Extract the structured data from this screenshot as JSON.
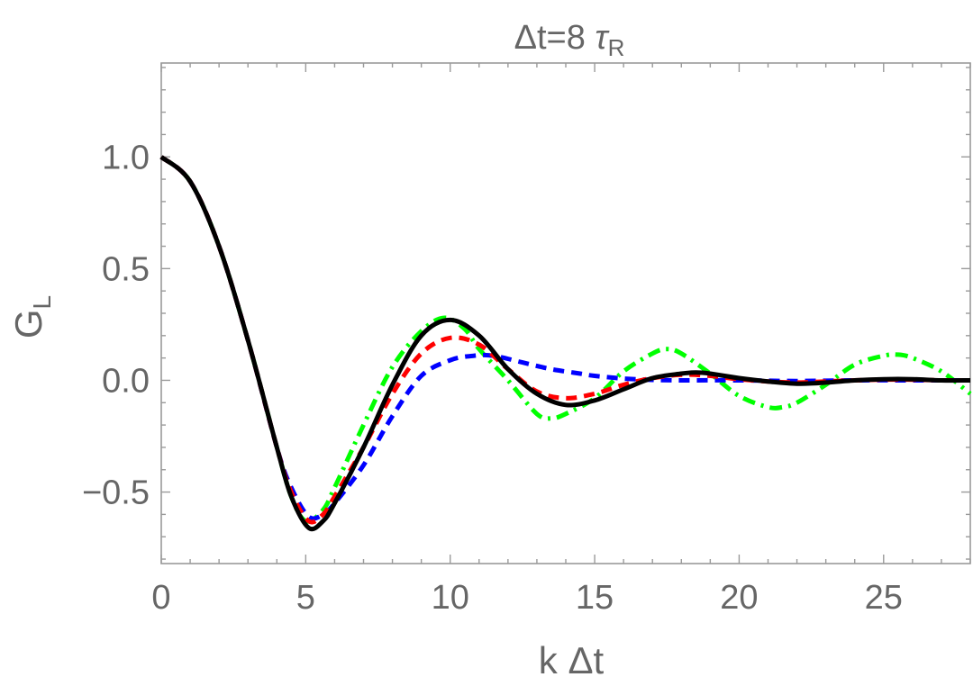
{
  "chart_data": {
    "type": "line",
    "title_main": "Δt=8 ",
    "title_sym": "τ",
    "title_sub": "R",
    "xlabel": "k Δt",
    "ylabel_main": "G",
    "ylabel_sub": "L",
    "xlim": [
      0,
      28
    ],
    "ylim": [
      -0.82,
      1.42
    ],
    "xticks": [
      0,
      5,
      10,
      15,
      20,
      25
    ],
    "xtick_labels": [
      "0",
      "5",
      "10",
      "15",
      "20",
      "25"
    ],
    "yticks": [
      -0.5,
      0.0,
      0.5,
      1.0
    ],
    "ytick_labels": [
      "−0.5",
      "0.0",
      "0.5",
      "1.0"
    ],
    "grid": false,
    "series": [
      {
        "color": "#000000",
        "style": "solid",
        "points": [
          [
            0,
            1.0
          ],
          [
            1,
            0.89
          ],
          [
            2,
            0.6
          ],
          [
            3,
            0.18
          ],
          [
            4,
            -0.3
          ],
          [
            4.5,
            -0.52
          ],
          [
            5.1,
            -0.66
          ],
          [
            5.6,
            -0.63
          ],
          [
            6,
            -0.55
          ],
          [
            7,
            -0.3
          ],
          [
            8,
            -0.02
          ],
          [
            9,
            0.2
          ],
          [
            10,
            0.27
          ],
          [
            11,
            0.2
          ],
          [
            12,
            0.05
          ],
          [
            13,
            -0.06
          ],
          [
            14,
            -0.11
          ],
          [
            15,
            -0.09
          ],
          [
            16,
            -0.04
          ],
          [
            17,
            0.01
          ],
          [
            18,
            0.03
          ],
          [
            18.5,
            0.035
          ],
          [
            19,
            0.03
          ],
          [
            20,
            0.01
          ],
          [
            21,
            -0.005
          ],
          [
            22,
            -0.015
          ],
          [
            23,
            -0.01
          ],
          [
            24,
            0.0
          ],
          [
            25,
            0.005
          ],
          [
            26,
            0.005
          ],
          [
            27,
            0.0
          ],
          [
            28,
            0.0
          ]
        ]
      },
      {
        "color": "#ff0000",
        "style": "dashed",
        "points": [
          [
            0,
            1.0
          ],
          [
            1,
            0.89
          ],
          [
            2,
            0.6
          ],
          [
            3,
            0.18
          ],
          [
            4,
            -0.3
          ],
          [
            4.5,
            -0.5
          ],
          [
            5.1,
            -0.63
          ],
          [
            5.6,
            -0.6
          ],
          [
            6,
            -0.52
          ],
          [
            7,
            -0.3
          ],
          [
            8,
            -0.06
          ],
          [
            9,
            0.12
          ],
          [
            10,
            0.19
          ],
          [
            11,
            0.16
          ],
          [
            12,
            0.05
          ],
          [
            13,
            -0.05
          ],
          [
            14,
            -0.08
          ],
          [
            15,
            -0.06
          ],
          [
            16,
            -0.02
          ],
          [
            17,
            0.01
          ],
          [
            18,
            0.025
          ],
          [
            19,
            0.02
          ],
          [
            20,
            0.005
          ],
          [
            21,
            -0.005
          ],
          [
            22,
            -0.01
          ],
          [
            23,
            -0.005
          ],
          [
            24,
            0.0
          ],
          [
            25,
            0.003
          ],
          [
            26,
            0.003
          ],
          [
            27,
            0.0
          ],
          [
            28,
            0.0
          ]
        ]
      },
      {
        "color": "#0000ff",
        "style": "dashed",
        "points": [
          [
            0,
            1.0
          ],
          [
            1,
            0.89
          ],
          [
            2,
            0.6
          ],
          [
            3,
            0.18
          ],
          [
            4,
            -0.3
          ],
          [
            4.5,
            -0.48
          ],
          [
            5.1,
            -0.61
          ],
          [
            5.6,
            -0.6
          ],
          [
            6,
            -0.55
          ],
          [
            7,
            -0.38
          ],
          [
            8,
            -0.16
          ],
          [
            9,
            0.02
          ],
          [
            10,
            0.09
          ],
          [
            10.8,
            0.11
          ],
          [
            11.5,
            0.11
          ],
          [
            12.5,
            0.08
          ],
          [
            13.5,
            0.05
          ],
          [
            14.5,
            0.03
          ],
          [
            15,
            0.02
          ],
          [
            16,
            0.008
          ],
          [
            17,
            0.002
          ],
          [
            18,
            0.0
          ],
          [
            20,
            0.0
          ],
          [
            22,
            -0.003
          ],
          [
            24,
            0.0
          ],
          [
            26,
            0.0
          ],
          [
            28,
            0.0
          ]
        ]
      },
      {
        "color": "#00ff00",
        "style": "dashdot",
        "points": [
          [
            0,
            1.0
          ],
          [
            1,
            0.89
          ],
          [
            2,
            0.6
          ],
          [
            3,
            0.18
          ],
          [
            4,
            -0.3
          ],
          [
            4.5,
            -0.52
          ],
          [
            5,
            -0.63
          ],
          [
            5.6,
            -0.58
          ],
          [
            6,
            -0.48
          ],
          [
            7,
            -0.2
          ],
          [
            8,
            0.06
          ],
          [
            9,
            0.22
          ],
          [
            9.8,
            0.28
          ],
          [
            10.5,
            0.23
          ],
          [
            11,
            0.14
          ],
          [
            12,
            0.0
          ],
          [
            13,
            -0.15
          ],
          [
            13.5,
            -0.17
          ],
          [
            14,
            -0.15
          ],
          [
            15,
            -0.08
          ],
          [
            16,
            0.04
          ],
          [
            17,
            0.12
          ],
          [
            17.5,
            0.14
          ],
          [
            18,
            0.12
          ],
          [
            19,
            0.03
          ],
          [
            20,
            -0.07
          ],
          [
            21,
            -0.12
          ],
          [
            21.5,
            -0.12
          ],
          [
            22,
            -0.1
          ],
          [
            23,
            -0.02
          ],
          [
            24,
            0.07
          ],
          [
            25,
            0.11
          ],
          [
            25.5,
            0.115
          ],
          [
            26,
            0.1
          ],
          [
            27,
            0.04
          ],
          [
            28,
            -0.06
          ]
        ]
      }
    ]
  }
}
